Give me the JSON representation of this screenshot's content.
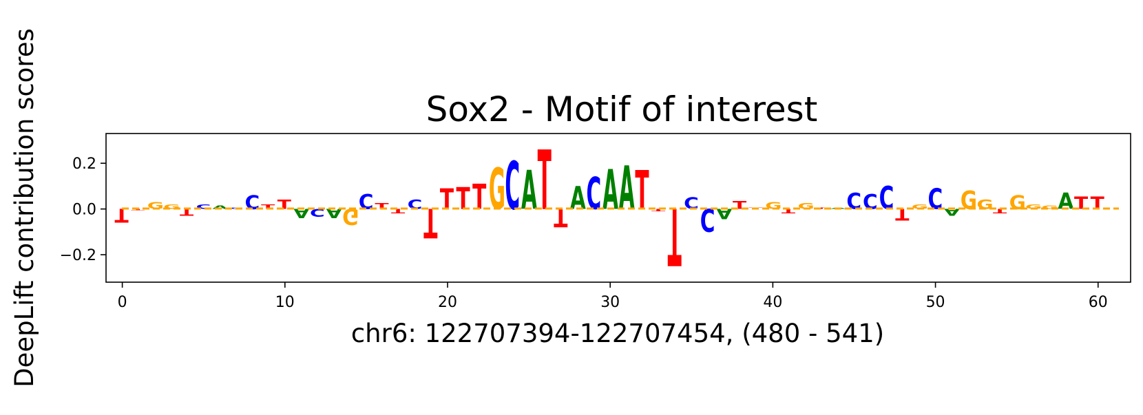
{
  "chart_data": {
    "type": "sequence-logo",
    "title": "Sox2 - Motif of interest",
    "xlabel": "chr6: 122707394-122707454, (480 - 541)",
    "ylabel": "DeepLift contribution scores",
    "xlim": [
      -1,
      62
    ],
    "ylim": [
      -0.32,
      0.33
    ],
    "xticks": [
      0,
      10,
      20,
      30,
      40,
      50,
      60
    ],
    "yticks": [
      -0.2,
      0.0,
      0.2
    ],
    "ytick_labels": [
      "−0.2",
      "0.0",
      "0.2"
    ],
    "baseline_color": "#ffa500",
    "colors": {
      "A": "#008000",
      "C": "#0000ff",
      "G": "#ffa500",
      "T": "#ff0000"
    },
    "positions": [
      0,
      1,
      2,
      3,
      4,
      5,
      6,
      7,
      8,
      9,
      10,
      11,
      12,
      13,
      14,
      15,
      16,
      17,
      18,
      19,
      20,
      21,
      22,
      23,
      24,
      25,
      26,
      27,
      28,
      29,
      30,
      31,
      32,
      33,
      34,
      35,
      36,
      37,
      38,
      39,
      40,
      41,
      42,
      43,
      44,
      45,
      46,
      47,
      48,
      49,
      50,
      51,
      52,
      53,
      54,
      55,
      56,
      57,
      58,
      59,
      60
    ],
    "bases": [
      "T",
      "T",
      "G",
      "G",
      "T",
      "C",
      "A",
      "C",
      "C",
      "T",
      "T",
      "A",
      "C",
      "A",
      "G",
      "C",
      "T",
      "T",
      "C",
      "T",
      "T",
      "T",
      "T",
      "G",
      "C",
      "A",
      "T",
      "T",
      "A",
      "C",
      "A",
      "A",
      "T",
      "T",
      "T",
      "C",
      "C",
      "A",
      "T",
      "T",
      "G",
      "T",
      "G",
      "T",
      "A",
      "C",
      "C",
      "C",
      "T",
      "G",
      "C",
      "A",
      "G",
      "G",
      "T",
      "G",
      "G",
      "G",
      "A",
      "T",
      "T"
    ],
    "scores": [
      -0.06,
      -0.005,
      0.03,
      0.02,
      -0.03,
      0.02,
      0.015,
      0.005,
      0.06,
      0.02,
      0.04,
      -0.04,
      -0.035,
      -0.04,
      -0.07,
      0.065,
      0.025,
      -0.02,
      0.04,
      -0.13,
      0.09,
      0.095,
      0.11,
      0.18,
      0.21,
      0.17,
      0.26,
      -0.08,
      0.1,
      0.14,
      0.175,
      0.19,
      0.17,
      -0.01,
      -0.25,
      0.05,
      -0.1,
      -0.045,
      0.035,
      0.005,
      0.03,
      -0.02,
      0.025,
      0.005,
      0.005,
      0.07,
      0.065,
      0.1,
      -0.05,
      0.02,
      0.09,
      -0.03,
      0.08,
      0.04,
      -0.02,
      0.06,
      0.02,
      0.015,
      0.07,
      0.055,
      0.055
    ]
  }
}
